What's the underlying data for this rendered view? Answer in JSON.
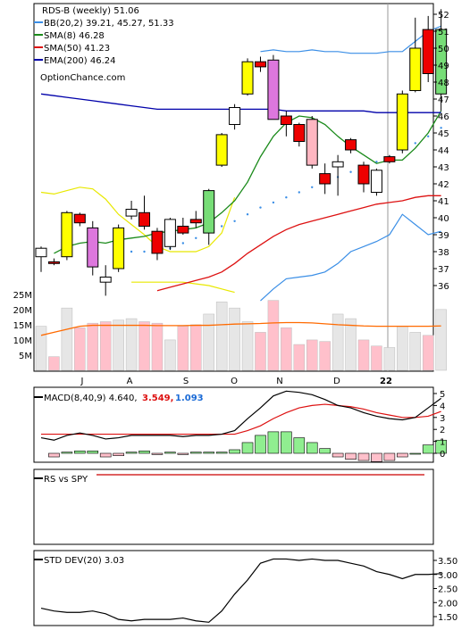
{
  "legend": {
    "symbol": "RDS-B (weekly) 51.06",
    "bb": "BB(20,2) 39.21, 45.27, 51.33",
    "sma8": "SMA(8) 46.28",
    "sma50": "SMA(50) 41.23",
    "ema200": "EMA(200) 46.24",
    "watermark": "OptionChance.com",
    "macd_label": "MACD(8,40,9) 4.640,",
    "macd_v2": "3.549,",
    "macd_v3": "1.093",
    "rs_label": "RS vs SPY",
    "std_label": "STD DEV(20) 3.03"
  },
  "colors": {
    "bb": "#3a8ee6",
    "sma8": "#1a8a1a",
    "sma50": "#dd1111",
    "ema200": "#0000aa",
    "bb_inner": "#e8e800",
    "volume_up": "#e6e6e6",
    "volume_down": "#ffc0cb",
    "volume_avg": "#ff6a00",
    "macd_line": "#000000",
    "macd_signal": "#dd1111",
    "hist_pos": "#90ee90",
    "hist_neg": "#ffc0cb"
  },
  "chart_data": [
    {
      "type": "candlestick",
      "title": "RDS-B (weekly) 51.06",
      "ylim": [
        35,
        52.5
      ],
      "yticks": [
        "36",
        "37",
        "38",
        "39",
        "40",
        "41",
        "42",
        "43",
        "44",
        "45",
        "46",
        "47",
        "48",
        "49",
        "50",
        "51",
        "52"
      ],
      "month_labels": [
        "J",
        "A",
        "S",
        "O",
        "N",
        "D",
        "22"
      ],
      "candles": [
        {
          "o": 37.7,
          "h": 38.3,
          "l": 36.8,
          "c": 38.2,
          "fill": "white"
        },
        {
          "o": 37.4,
          "h": 37.6,
          "l": 37.2,
          "c": 37.3,
          "fill": "red"
        },
        {
          "o": 37.7,
          "h": 40.4,
          "l": 37.5,
          "c": 40.3,
          "fill": "yellow"
        },
        {
          "o": 40.2,
          "h": 40.3,
          "l": 39.5,
          "c": 39.7,
          "fill": "red"
        },
        {
          "o": 39.4,
          "h": 39.8,
          "l": 36.6,
          "c": 37.1,
          "fill": "violet"
        },
        {
          "o": 36.5,
          "h": 37.2,
          "l": 35.4,
          "c": 36.2,
          "fill": "white"
        },
        {
          "o": 37.0,
          "h": 39.6,
          "l": 36.8,
          "c": 39.4,
          "fill": "yellow"
        },
        {
          "o": 40.1,
          "h": 41.0,
          "l": 39.9,
          "c": 40.5,
          "fill": "white"
        },
        {
          "o": 40.3,
          "h": 41.3,
          "l": 39.3,
          "c": 39.5,
          "fill": "red"
        },
        {
          "o": 39.2,
          "h": 39.4,
          "l": 37.5,
          "c": 37.9,
          "fill": "red"
        },
        {
          "o": 38.3,
          "h": 40.0,
          "l": 38.1,
          "c": 39.9,
          "fill": "white"
        },
        {
          "o": 39.5,
          "h": 40.0,
          "l": 39.0,
          "c": 39.1,
          "fill": "red"
        },
        {
          "o": 39.7,
          "h": 40.4,
          "l": 39.4,
          "c": 39.9,
          "fill": "red"
        },
        {
          "o": 39.1,
          "h": 41.7,
          "l": 38.4,
          "c": 41.6,
          "fill": "green"
        },
        {
          "o": 43.1,
          "h": 45.0,
          "l": 43.0,
          "c": 44.9,
          "fill": "yellow"
        },
        {
          "o": 45.5,
          "h": 46.7,
          "l": 45.2,
          "c": 46.5,
          "fill": "white"
        },
        {
          "o": 47.3,
          "h": 49.4,
          "l": 47.2,
          "c": 49.2,
          "fill": "yellow"
        },
        {
          "o": 49.2,
          "h": 49.5,
          "l": 48.6,
          "c": 48.9,
          "fill": "red"
        },
        {
          "o": 49.3,
          "h": 49.6,
          "l": 45.8,
          "c": 45.8,
          "fill": "violet"
        },
        {
          "o": 46.0,
          "h": 46.3,
          "l": 44.8,
          "c": 45.5,
          "fill": "red"
        },
        {
          "o": 45.5,
          "h": 45.6,
          "l": 44.2,
          "c": 44.5,
          "fill": "red"
        },
        {
          "o": 45.8,
          "h": 46.0,
          "l": 42.9,
          "c": 43.1,
          "fill": "pink"
        },
        {
          "o": 42.6,
          "h": 43.2,
          "l": 41.4,
          "c": 42.0,
          "fill": "red"
        },
        {
          "o": 43.0,
          "h": 43.7,
          "l": 41.3,
          "c": 43.3,
          "fill": "white"
        },
        {
          "o": 44.6,
          "h": 44.7,
          "l": 43.8,
          "c": 44.0,
          "fill": "red"
        },
        {
          "o": 43.1,
          "h": 43.3,
          "l": 41.5,
          "c": 42.0,
          "fill": "red"
        },
        {
          "o": 41.5,
          "h": 42.9,
          "l": 41.3,
          "c": 42.8,
          "fill": "white"
        },
        {
          "o": 43.6,
          "h": 43.7,
          "l": 43.2,
          "c": 43.3,
          "fill": "red"
        },
        {
          "o": 44.0,
          "h": 47.5,
          "l": 43.8,
          "c": 47.3,
          "fill": "yellow"
        },
        {
          "o": 47.5,
          "h": 51.8,
          "l": 47.4,
          "c": 50.0,
          "fill": "yellow"
        },
        {
          "o": 51.1,
          "h": 51.9,
          "l": 48.0,
          "c": 48.5,
          "fill": "red"
        },
        {
          "o": 47.3,
          "h": 52.3,
          "l": 46.3,
          "c": 51.1,
          "fill": "green"
        }
      ],
      "series": [
        {
          "name": "BB(20,2) 39.21, 45.27, 51.33",
          "role": "bb_outer",
          "values": [
            null,
            null,
            null,
            null,
            null,
            null,
            null,
            null,
            null,
            null,
            null,
            null,
            null,
            null,
            null,
            null,
            null,
            49.8,
            49.9,
            49.8,
            49.8,
            49.9,
            49.8,
            49.8,
            49.7,
            49.7,
            49.7,
            49.8,
            49.8,
            50.4,
            51.0,
            51.3
          ]
        },
        {
          "name": "",
          "role": "bb_outer_lower",
          "values": [
            null,
            null,
            null,
            null,
            null,
            null,
            null,
            null,
            null,
            null,
            null,
            null,
            null,
            null,
            null,
            null,
            null,
            35.1,
            35.8,
            36.4,
            36.5,
            36.6,
            36.8,
            37.3,
            38.0,
            38.3,
            38.6,
            39.0,
            40.2,
            39.6,
            39.0,
            39.2
          ]
        },
        {
          "name": "",
          "role": "bb_inner",
          "values": [
            41.5,
            41.4,
            41.6,
            41.8,
            41.7,
            41.1,
            40.2,
            39.6,
            39.0,
            38.3,
            38.0,
            38.0,
            38.0,
            38.3,
            39.1,
            41.2,
            null,
            null,
            null,
            null,
            null,
            null,
            null,
            null,
            null,
            null,
            null,
            null,
            null,
            null,
            null,
            null
          ]
        },
        {
          "name": "",
          "role": "bb_inner_lower",
          "values": [
            null,
            null,
            null,
            null,
            null,
            null,
            null,
            36.2,
            36.2,
            36.2,
            36.2,
            36.2,
            36.1,
            36.0,
            35.8,
            35.6,
            null,
            null,
            null,
            null,
            null,
            null,
            null,
            null,
            null,
            null,
            null,
            null,
            null,
            null,
            null,
            null
          ]
        },
        {
          "name": "SMA(8) 46.28",
          "role": "sma8",
          "values": [
            null,
            37.9,
            38.3,
            38.5,
            38.6,
            38.5,
            38.7,
            38.8,
            38.9,
            39.1,
            39.2,
            39.3,
            39.4,
            39.7,
            40.3,
            41.0,
            42.1,
            43.6,
            44.8,
            45.6,
            46.0,
            45.9,
            45.5,
            44.8,
            44.2,
            43.7,
            43.2,
            43.4,
            43.4,
            44.1,
            45.0,
            46.3
          ]
        },
        {
          "name": "SMA(50) 41.23",
          "role": "sma50",
          "values": [
            null,
            null,
            null,
            null,
            null,
            null,
            null,
            null,
            null,
            35.7,
            35.9,
            36.1,
            36.3,
            36.5,
            36.8,
            37.3,
            37.9,
            38.4,
            38.9,
            39.3,
            39.6,
            39.8,
            40.0,
            40.2,
            40.4,
            40.6,
            40.8,
            40.9,
            41.0,
            41.2,
            41.3,
            41.3
          ]
        },
        {
          "name": "EMA(200) 46.24",
          "role": "ema200",
          "values": [
            47.3,
            47.2,
            47.1,
            47.0,
            46.9,
            46.8,
            46.7,
            46.6,
            46.5,
            46.4,
            46.4,
            46.4,
            46.4,
            46.4,
            46.4,
            46.4,
            46.4,
            46.4,
            46.4,
            46.3,
            46.3,
            46.3,
            46.3,
            46.3,
            46.3,
            46.3,
            46.2,
            46.2,
            46.2,
            46.2,
            46.2,
            46.2
          ]
        },
        {
          "name": "",
          "role": "dots",
          "values": [
            null,
            null,
            null,
            null,
            null,
            null,
            null,
            38.0,
            38.0,
            38.0,
            38.2,
            38.5,
            38.8,
            39.2,
            39.5,
            39.8,
            40.2,
            40.6,
            40.9,
            41.2,
            41.5,
            41.8,
            42.1,
            42.4,
            42.7,
            43.0,
            43.3,
            43.6,
            44.0,
            44.4,
            44.8,
            45.3
          ]
        }
      ]
    },
    {
      "type": "bar",
      "title": "Volume",
      "yticks": [
        "5M",
        "10M",
        "15M",
        "20M",
        "25M"
      ],
      "ylim": [
        0,
        27
      ],
      "values": [
        14.5,
        4.5,
        20.5,
        14.0,
        15.5,
        16.0,
        16.5,
        17.0,
        16.0,
        15.5,
        10.0,
        14.5,
        15.0,
        18.5,
        22.5,
        20.5,
        16.0,
        12.5,
        23.0,
        14.0,
        8.5,
        10.0,
        9.5,
        18.5,
        17.0,
        10.0,
        8.0,
        7.5,
        14.5,
        12.5,
        11.5,
        20.0
      ],
      "down": [
        false,
        true,
        false,
        true,
        true,
        true,
        false,
        false,
        true,
        true,
        false,
        true,
        true,
        false,
        false,
        false,
        false,
        true,
        true,
        true,
        true,
        true,
        true,
        false,
        false,
        true,
        true,
        false,
        false,
        false,
        true,
        false
      ],
      "avg": [
        11.5,
        12.5,
        13.5,
        14.5,
        14.8,
        14.8,
        14.8,
        14.8,
        14.8,
        14.7,
        14.7,
        14.7,
        14.8,
        14.8,
        15.0,
        15.2,
        15.3,
        15.4,
        15.6,
        15.7,
        15.7,
        15.6,
        15.3,
        15.0,
        14.8,
        14.6,
        14.5,
        14.5,
        14.5,
        14.5,
        14.5,
        14.6
      ]
    },
    {
      "type": "bar",
      "title": "MACD(8,40,9) 4.640, 3.549, 1.093",
      "yticks": [
        "0",
        "1",
        "2",
        "3",
        "4",
        "5"
      ],
      "ylim": [
        -1,
        5.3
      ],
      "macd": [
        1.3,
        1.1,
        1.5,
        1.7,
        1.5,
        1.2,
        1.3,
        1.5,
        1.5,
        1.5,
        1.5,
        1.4,
        1.5,
        1.5,
        1.6,
        1.9,
        2.9,
        3.8,
        4.8,
        5.2,
        5.1,
        4.9,
        4.5,
        4.0,
        3.8,
        3.4,
        3.1,
        2.9,
        2.8,
        3.0,
        3.8,
        4.6
      ],
      "signal": [
        1.6,
        1.6,
        1.6,
        1.6,
        1.6,
        1.6,
        1.6,
        1.6,
        1.6,
        1.6,
        1.6,
        1.6,
        1.6,
        1.6,
        1.6,
        1.6,
        1.9,
        2.3,
        2.9,
        3.4,
        3.8,
        4.0,
        4.1,
        4.0,
        3.9,
        3.7,
        3.4,
        3.2,
        3.0,
        3.0,
        3.1,
        3.5
      ],
      "hist": [
        null,
        -0.3,
        0.1,
        0.2,
        0.2,
        -0.3,
        -0.2,
        0.1,
        0.2,
        -0.1,
        0.1,
        -0.1,
        0.1,
        0.1,
        0.1,
        0.3,
        0.9,
        1.5,
        1.8,
        1.8,
        1.3,
        0.9,
        0.4,
        -0.3,
        -0.5,
        -0.6,
        -0.7,
        -0.6,
        -0.3,
        0.0,
        0.7,
        1.1
      ]
    },
    {
      "type": "line",
      "title": "RS vs SPY",
      "values": [
        null,
        null,
        null,
        null,
        null,
        null,
        null,
        null,
        null,
        null,
        null,
        null,
        null,
        null,
        null,
        null,
        null,
        null,
        null,
        null,
        null,
        null,
        null,
        null,
        null,
        null,
        null,
        null,
        null,
        null,
        null,
        null
      ]
    },
    {
      "type": "line",
      "title": "STD DEV(20) 3.03",
      "yticks": [
        "1.50",
        "2.00",
        "2.50",
        "3.00",
        "3.50"
      ],
      "ylim": [
        1.3,
        3.75
      ],
      "values": [
        1.8,
        1.7,
        1.65,
        1.65,
        1.7,
        1.6,
        1.4,
        1.35,
        1.4,
        1.4,
        1.4,
        1.45,
        1.35,
        1.3,
        1.7,
        2.3,
        2.8,
        3.4,
        3.55,
        3.55,
        3.5,
        3.55,
        3.5,
        3.5,
        3.4,
        3.3,
        3.1,
        3.0,
        2.85,
        3.0,
        3.0,
        3.03
      ]
    }
  ]
}
